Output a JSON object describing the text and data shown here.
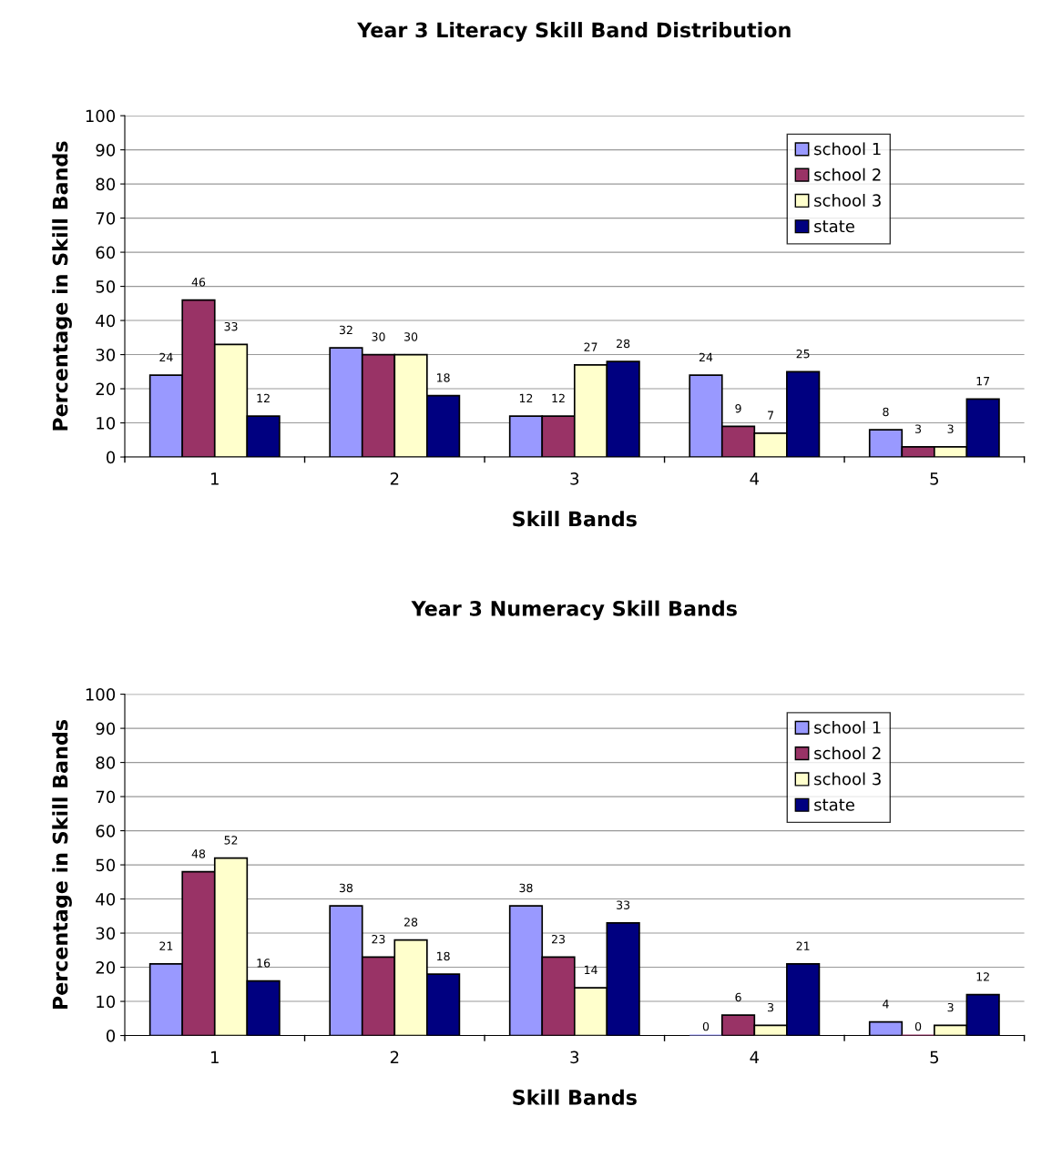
{
  "chart_data": [
    {
      "type": "bar",
      "title": "Year 3 Literacy Skill Band Distribution",
      "xlabel": "Skill Bands",
      "ylabel": "Percentage in Skill Bands",
      "categories": [
        "1",
        "2",
        "3",
        "4",
        "5"
      ],
      "series": [
        {
          "name": "school 1",
          "color": "#9999ff",
          "values": [
            24,
            32,
            12,
            24,
            8
          ]
        },
        {
          "name": "school 2",
          "color": "#993366",
          "values": [
            46,
            30,
            12,
            9,
            3
          ]
        },
        {
          "name": "school 3",
          "color": "#ffffcc",
          "values": [
            33,
            30,
            27,
            7,
            3
          ]
        },
        {
          "name": "state",
          "color": "#000080",
          "values": [
            12,
            18,
            28,
            25,
            17
          ]
        }
      ],
      "ylim": [
        0,
        100
      ],
      "yticks": [
        0,
        10,
        20,
        30,
        40,
        50,
        60,
        70,
        80,
        90,
        100
      ],
      "grid": "y",
      "legend": "top right",
      "data_labels": true
    },
    {
      "type": "bar",
      "title": "Year 3 Numeracy Skill Bands",
      "xlabel": "Skill Bands",
      "ylabel": "Percentage in Skill Bands",
      "categories": [
        "1",
        "2",
        "3",
        "4",
        "5"
      ],
      "series": [
        {
          "name": "school 1",
          "color": "#9999ff",
          "values": [
            21,
            38,
            38,
            0,
            4
          ]
        },
        {
          "name": "school 2",
          "color": "#993366",
          "values": [
            48,
            23,
            23,
            6,
            0
          ]
        },
        {
          "name": "school 3",
          "color": "#ffffcc",
          "values": [
            52,
            28,
            14,
            3,
            3
          ]
        },
        {
          "name": "state",
          "color": "#000080",
          "values": [
            16,
            18,
            33,
            21,
            12
          ]
        }
      ],
      "ylim": [
        0,
        100
      ],
      "yticks": [
        0,
        10,
        20,
        30,
        40,
        50,
        60,
        70,
        80,
        90,
        100
      ],
      "grid": "y",
      "legend": "top right",
      "data_labels": true
    }
  ]
}
